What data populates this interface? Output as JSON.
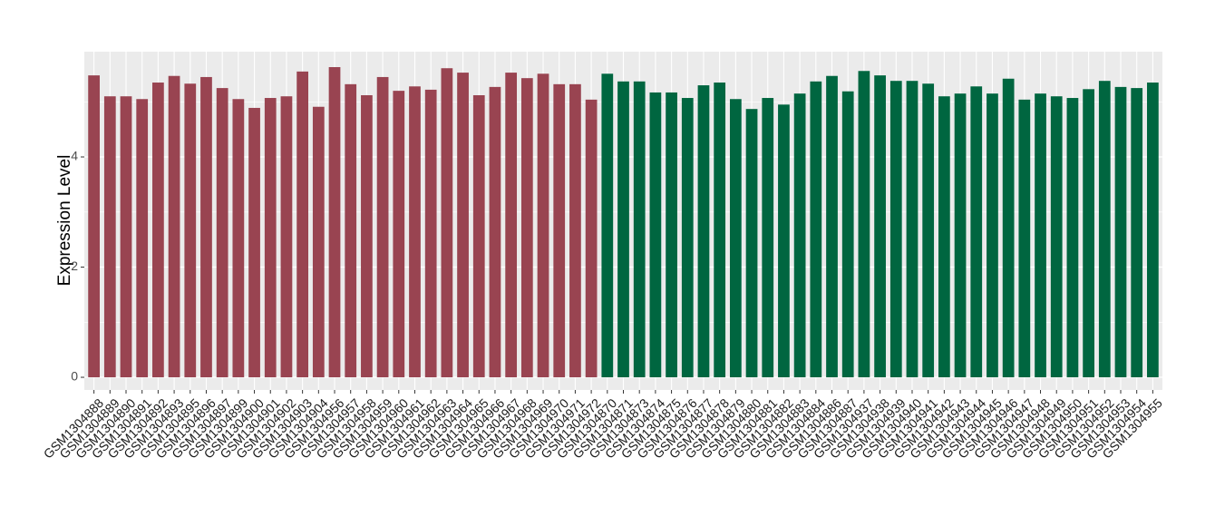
{
  "chart_data": {
    "type": "bar",
    "y_label": "Expression Level",
    "categories": [
      "GSM1304888",
      "GSM1304889",
      "GSM1304890",
      "GSM1304891",
      "GSM1304892",
      "GSM1304893",
      "GSM1304895",
      "GSM1304896",
      "GSM1304897",
      "GSM1304899",
      "GSM1304900",
      "GSM1304901",
      "GSM1304902",
      "GSM1304903",
      "GSM1304904",
      "GSM1304956",
      "GSM1304957",
      "GSM1304958",
      "GSM1304959",
      "GSM1304960",
      "GSM1304961",
      "GSM1304962",
      "GSM1304963",
      "GSM1304964",
      "GSM1304965",
      "GSM1304966",
      "GSM1304967",
      "GSM1304968",
      "GSM1304969",
      "GSM1304970",
      "GSM1304971",
      "GSM1304972",
      "GSM1304870",
      "GSM1304871",
      "GSM1304873",
      "GSM1304874",
      "GSM1304875",
      "GSM1304876",
      "GSM1304877",
      "GSM1304878",
      "GSM1304879",
      "GSM1304880",
      "GSM1304881",
      "GSM1304882",
      "GSM1304883",
      "GSM1304884",
      "GSM1304886",
      "GSM1304887",
      "GSM1304937",
      "GSM1304938",
      "GSM1304939",
      "GSM1304940",
      "GSM1304941",
      "GSM1304942",
      "GSM1304943",
      "GSM1304944",
      "GSM1304945",
      "GSM1304946",
      "GSM1304947",
      "GSM1304948",
      "GSM1304949",
      "GSM1304950",
      "GSM1304951",
      "GSM1304952",
      "GSM1304953",
      "GSM1304954",
      "GSM1304955"
    ],
    "values": [
      5.48,
      5.1,
      5.1,
      5.05,
      5.35,
      5.47,
      5.33,
      5.45,
      5.25,
      5.05,
      4.89,
      5.07,
      5.1,
      5.55,
      4.91,
      5.63,
      5.32,
      5.12,
      5.45,
      5.2,
      5.28,
      5.22,
      5.61,
      5.53,
      5.12,
      5.27,
      5.53,
      5.43,
      5.51,
      5.32,
      5.32,
      5.04,
      5.51,
      5.37,
      5.37,
      5.17,
      5.17,
      5.07,
      5.3,
      5.35,
      5.05,
      4.87,
      5.07,
      4.95,
      5.15,
      5.37,
      5.47,
      5.19,
      5.56,
      5.48,
      5.38,
      5.38,
      5.33,
      5.1,
      5.15,
      5.28,
      5.15,
      5.42,
      5.04,
      5.15,
      5.1,
      5.07,
      5.23,
      5.38,
      5.27,
      5.25,
      5.35
    ],
    "colors": [
      "#994451",
      "#994451",
      "#994451",
      "#994451",
      "#994451",
      "#994451",
      "#994451",
      "#994451",
      "#994451",
      "#994451",
      "#994451",
      "#994451",
      "#994451",
      "#994451",
      "#994451",
      "#994451",
      "#994451",
      "#994451",
      "#994451",
      "#994451",
      "#994451",
      "#994451",
      "#994451",
      "#994451",
      "#994451",
      "#994451",
      "#994451",
      "#994451",
      "#994451",
      "#994451",
      "#994451",
      "#994451",
      "#006640",
      "#006640",
      "#006640",
      "#006640",
      "#006640",
      "#006640",
      "#006640",
      "#006640",
      "#006640",
      "#006640",
      "#006640",
      "#006640",
      "#006640",
      "#006640",
      "#006640",
      "#006640",
      "#006640",
      "#006640",
      "#006640",
      "#006640",
      "#006640",
      "#006640",
      "#006640",
      "#006640",
      "#006640",
      "#006640",
      "#006640",
      "#006640",
      "#006640",
      "#006640",
      "#006640",
      "#006640",
      "#006640",
      "#006640",
      "#006640"
    ],
    "ylim": [
      -0.23,
      5.91
    ],
    "yticks": [
      0,
      2,
      4
    ],
    "grid": true
  }
}
